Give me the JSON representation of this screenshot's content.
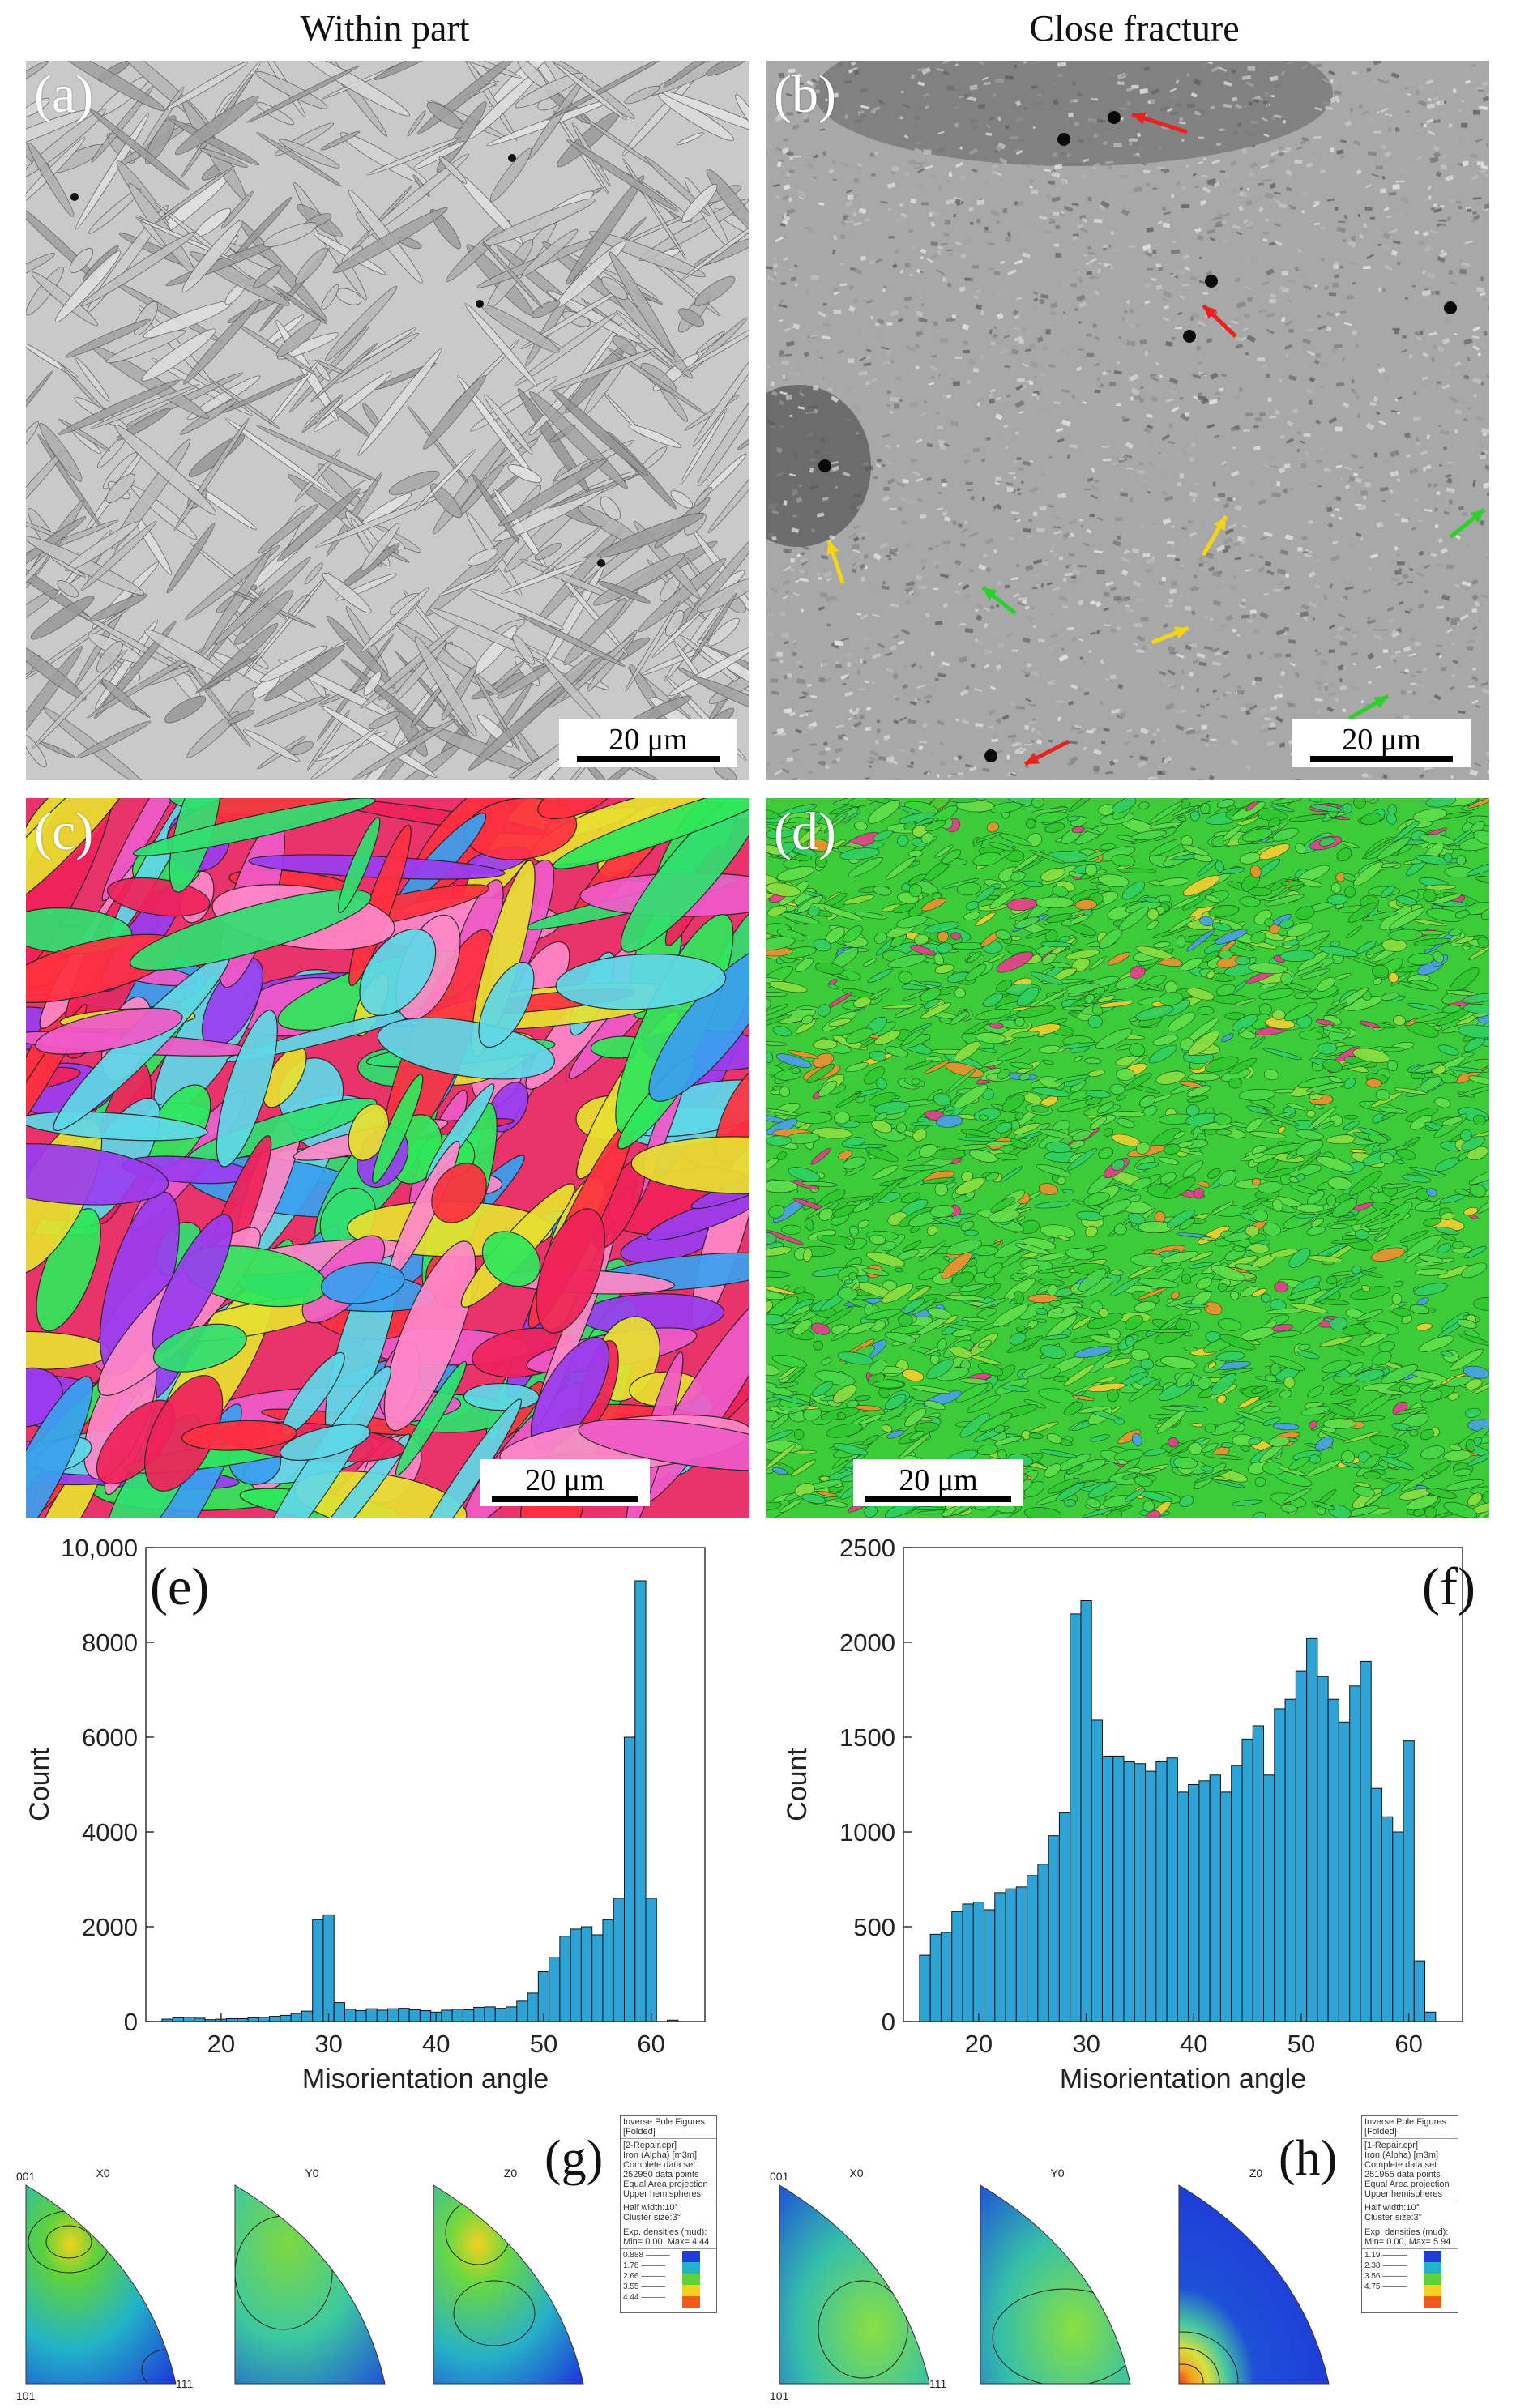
{
  "column_titles": [
    "Within part",
    "Close fracture"
  ],
  "panels": {
    "a": {
      "label": "(a)",
      "scale": "20 μm"
    },
    "b": {
      "label": "(b)",
      "scale": "20 μm"
    },
    "c": {
      "label": "(c)",
      "scale": "20 μm"
    },
    "d": {
      "label": "(d)",
      "scale": "20 μm"
    },
    "e": {
      "label": "(e)"
    },
    "f": {
      "label": "(f)"
    },
    "g": {
      "label": "(g)"
    },
    "h": {
      "label": "(h)"
    }
  },
  "colors": {
    "bar_fill": "#2ea3d6",
    "bar_edge": "#111111",
    "arrow_red": "#e8231f",
    "arrow_yellow": "#f4d417",
    "arrow_green": "#2ad12a"
  },
  "chart_data": [
    {
      "type": "bar",
      "panel": "e",
      "xlabel": "Misorientation angle",
      "ylabel": "Count",
      "xlim": [
        13,
        65
      ],
      "ylim": [
        0,
        10000
      ],
      "xticks": [
        20,
        30,
        40,
        50,
        60
      ],
      "yticks": [
        0,
        2000,
        4000,
        6000,
        8000,
        10000
      ],
      "ytick_labels": [
        "0",
        "2000",
        "4000",
        "6000",
        "8000",
        "10,000"
      ],
      "bin_width": 1,
      "x": [
        15,
        16,
        17,
        18,
        19,
        20,
        21,
        22,
        23,
        24,
        25,
        26,
        27,
        28,
        29,
        30,
        31,
        32,
        33,
        34,
        35,
        36,
        37,
        38,
        39,
        40,
        41,
        42,
        43,
        44,
        45,
        46,
        47,
        48,
        49,
        50,
        51,
        52,
        53,
        54,
        55,
        56,
        57,
        58,
        59,
        60,
        61,
        62
      ],
      "values": [
        50,
        80,
        90,
        70,
        40,
        50,
        60,
        60,
        80,
        90,
        110,
        130,
        170,
        220,
        2150,
        2250,
        400,
        260,
        230,
        270,
        240,
        270,
        280,
        250,
        230,
        200,
        240,
        260,
        250,
        300,
        310,
        280,
        310,
        430,
        600,
        1050,
        1350,
        1800,
        1950,
        2000,
        1830,
        2150,
        2600,
        6000,
        9300,
        2600,
        0,
        30
      ]
    },
    {
      "type": "bar",
      "panel": "f",
      "xlabel": "Misorientation angle",
      "ylabel": "Count",
      "xlim": [
        13,
        65
      ],
      "ylim": [
        0,
        2500
      ],
      "xticks": [
        20,
        30,
        40,
        50,
        60
      ],
      "yticks": [
        0,
        500,
        1000,
        1500,
        2000,
        2500
      ],
      "ytick_labels": [
        "0",
        "500",
        "1000",
        "1500",
        "2000",
        "2500"
      ],
      "bin_width": 1,
      "x": [
        15,
        16,
        17,
        18,
        19,
        20,
        21,
        22,
        23,
        24,
        25,
        26,
        27,
        28,
        29,
        30,
        31,
        32,
        33,
        34,
        35,
        36,
        37,
        38,
        39,
        40,
        41,
        42,
        43,
        44,
        45,
        46,
        47,
        48,
        49,
        50,
        51,
        52,
        53,
        54,
        55,
        56,
        57,
        58,
        59,
        60,
        61,
        62
      ],
      "values": [
        350,
        460,
        470,
        580,
        620,
        630,
        590,
        680,
        700,
        710,
        770,
        830,
        980,
        1100,
        2150,
        2220,
        1590,
        1400,
        1400,
        1370,
        1360,
        1320,
        1370,
        1390,
        1210,
        1250,
        1270,
        1300,
        1210,
        1350,
        1490,
        1560,
        1300,
        1650,
        1700,
        1850,
        2020,
        1820,
        1700,
        1580,
        1770,
        1900,
        1230,
        1080,
        1000,
        1480,
        320,
        50
      ]
    }
  ],
  "ipf": {
    "g": {
      "axes": [
        "X0",
        "Y0",
        "Z0"
      ],
      "corners": [
        "001",
        "101",
        "111"
      ],
      "legend": {
        "header": [
          "Inverse Pole Figures",
          "[Folded]"
        ],
        "dataset": [
          "[2-Repair.cpr]",
          "Iron (Alpha) [m3m]",
          "Complete data set",
          "252950 data points",
          "Equal Area projection",
          "Upper hemispheres"
        ],
        "params": [
          "Half width:10°",
          "Cluster size:3°"
        ],
        "densities": [
          "Exp. densities (mud):",
          "Min= 0.00, Max= 4.44"
        ],
        "levels": [
          "0.888",
          "1.78",
          "2.66",
          "3.55",
          "4.44"
        ]
      }
    },
    "h": {
      "axes": [
        "X0",
        "Y0",
        "Z0"
      ],
      "corners": [
        "001",
        "101",
        "111"
      ],
      "legend": {
        "header": [
          "Inverse Pole Figures",
          "[Folded]"
        ],
        "dataset": [
          "[1-Repair.cpr]",
          "Iron (Alpha) [m3m]",
          "Complete data set",
          "251955 data points",
          "Equal Area projection",
          "Upper hemispheres"
        ],
        "params": [
          "Half width:10°",
          "Cluster size:3°"
        ],
        "densities": [
          "Exp. densities (mud):",
          "Min= 0.00, Max= 5.94"
        ],
        "levels": [
          "1.19",
          "2.38",
          "3.56",
          "4.75"
        ]
      }
    }
  }
}
